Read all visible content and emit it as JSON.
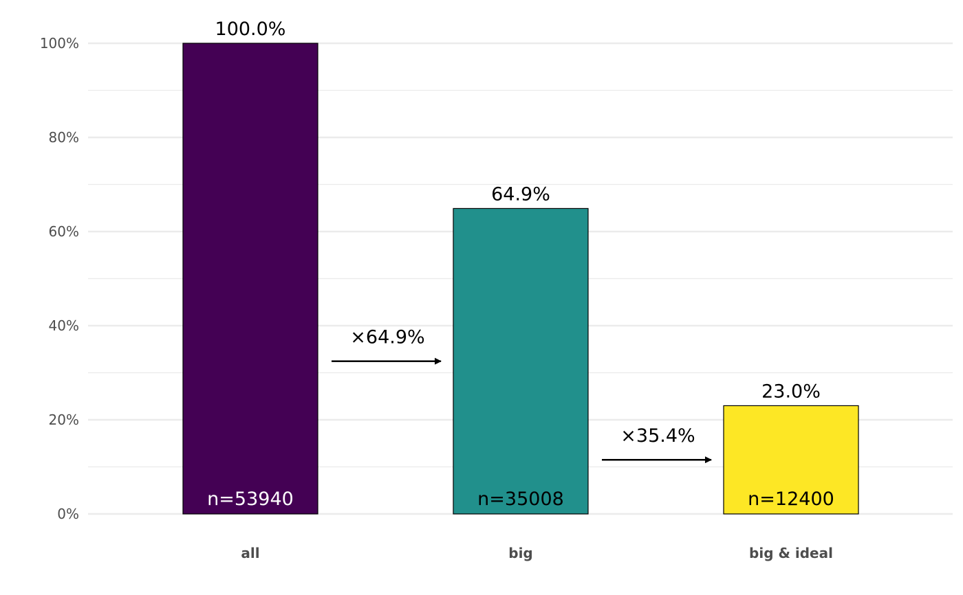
{
  "chart_data": {
    "type": "bar",
    "categories": [
      "all",
      "big",
      "big & ideal"
    ],
    "values": [
      100.0,
      64.9,
      23.0
    ],
    "value_labels": [
      "100.0%",
      "64.9%",
      "23.0%"
    ],
    "counts": [
      "n=53940",
      "n=35008",
      "n=12400"
    ],
    "count_label_colors": [
      "#ffffff",
      "#000000",
      "#000000"
    ],
    "colors": [
      "#440154",
      "#21908C",
      "#FDE725"
    ],
    "multipliers": [
      {
        "from": "all",
        "to": "big",
        "label": "×64.9%",
        "at_value": 32.45
      },
      {
        "from": "big",
        "to": "big & ideal",
        "label": "×35.4%",
        "at_value": 11.5
      }
    ],
    "ylim": [
      0,
      100
    ],
    "y_ticks": [
      0,
      20,
      40,
      60,
      80,
      100
    ],
    "y_tick_labels": [
      "0%",
      "20%",
      "40%",
      "60%",
      "80%",
      "100%"
    ],
    "y_minor_ticks": [
      10,
      30,
      50,
      70,
      90
    ],
    "grid": true,
    "title": "",
    "xlabel": "",
    "ylabel": ""
  }
}
